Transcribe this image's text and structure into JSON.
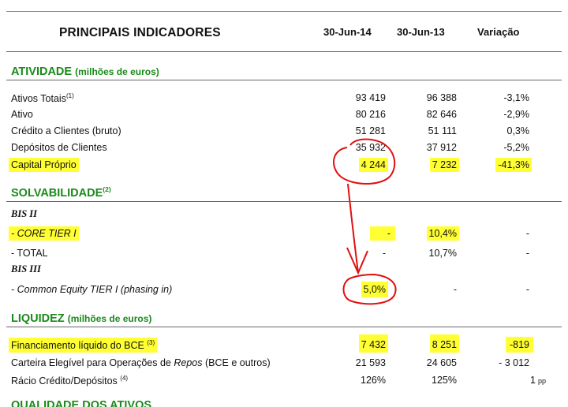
{
  "header": {
    "title": "PRINCIPAIS INDICADORES",
    "col1": "30-Jun-14",
    "col2": "30-Jun-13",
    "col3": "Variação"
  },
  "atividade": {
    "title": "ATIVIDADE",
    "unit": "(milhões de euros)",
    "rows": [
      {
        "label": "Ativos Totais",
        "note": "(1)",
        "v1": "93 419",
        "v2": "96 388",
        "v3": "-3,1%"
      },
      {
        "label": "Ativo",
        "v1": "80 216",
        "v2": "82 646",
        "v3": "-2,9%"
      },
      {
        "label": "Crédito a Clientes (bruto)",
        "v1": "51 281",
        "v2": "51 111",
        "v3": "0,3%"
      },
      {
        "label": "Depósitos de Clientes",
        "v1": "35 932",
        "v2": "37 912",
        "v3": "-5,2%"
      },
      {
        "label": "Capital Próprio",
        "v1": "4 244",
        "v2": "7 232",
        "v3": "-41,3%"
      }
    ]
  },
  "solvabilidade": {
    "title": "SOLVABILIDADE",
    "note": "(2)",
    "bis2": "BIS II",
    "bis3": "BIS III",
    "rows": [
      {
        "label": "- CORE TIER I",
        "v1": "-",
        "v2": "10,4%",
        "v3": "-"
      },
      {
        "label": "- TOTAL",
        "v1": "-",
        "v2": "10,7%",
        "v3": "-"
      },
      {
        "label": "- Common Equity TIER I (phasing in)",
        "v1": "5,0%",
        "v2": "-",
        "v3": "-"
      }
    ]
  },
  "liquidez": {
    "title": "LIQUIDEZ",
    "unit": "(milhões de euros)",
    "rows": [
      {
        "label": "Financiamento líquido do BCE",
        "note": "(3)",
        "v1": "7 432",
        "v2": "8 251",
        "v3": "-819"
      },
      {
        "label_a": "Carteira Elegível para Operações de ",
        "label_b": "Repos",
        "label_c": " (BCE e outros)",
        "v1": "21 593",
        "v2": "24 605",
        "v3": "- 3 012"
      },
      {
        "label": "Rácio Crédito/Depósitos",
        "note": "(4)",
        "v1": "126%",
        "v2": "125%",
        "v3": "1",
        "unit": "pp"
      }
    ]
  },
  "next_section": "QUALIDADE DOS ATIVOS",
  "colors": {
    "section_green": "#1a8a1a",
    "highlight": "#ffff33",
    "annotation_red": "#e01010"
  }
}
